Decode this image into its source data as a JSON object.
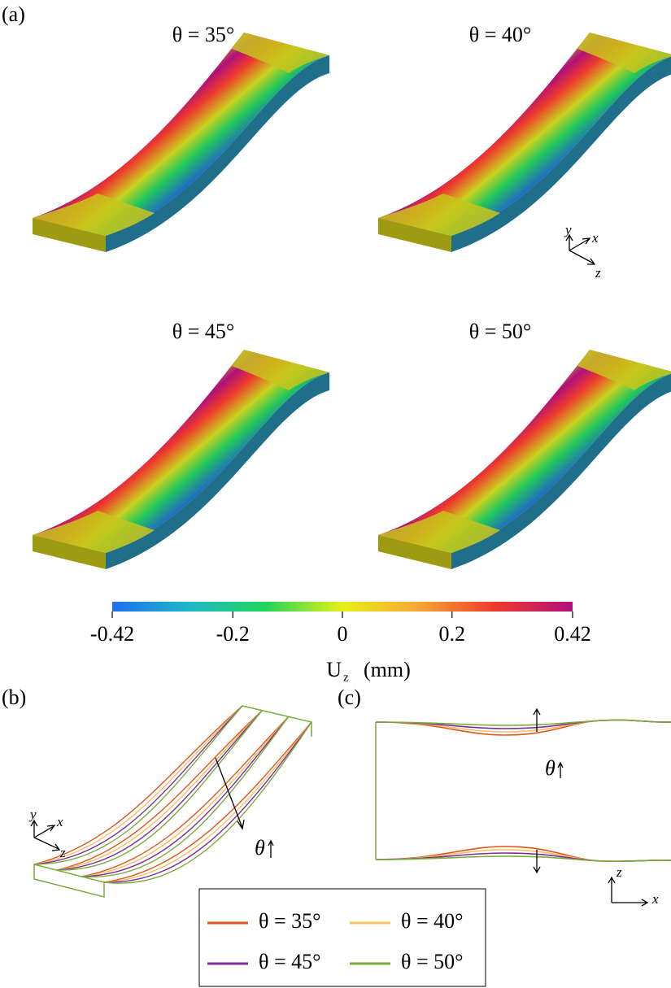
{
  "panel_labels": {
    "a": "(a)",
    "b": "(b)",
    "c": "(c)"
  },
  "panel_a": {
    "titles": [
      "θ = 35°",
      "θ = 40°",
      "θ = 45°",
      "θ = 50°"
    ],
    "axes": {
      "y": "y",
      "x": "x",
      "z": "z"
    }
  },
  "colorbar": {
    "lim": [
      -0.42,
      0.42
    ],
    "ticks": [
      -0.42,
      -0.2,
      0,
      0.2,
      0.42
    ],
    "symbol": "U",
    "subscript": "z",
    "unit": "(mm)",
    "colors": [
      "#1f6ff0",
      "#1fb8c8",
      "#22d45a",
      "#e8f018",
      "#f7a534",
      "#ee3a2c",
      "#b0107a"
    ]
  },
  "panel_b": {
    "axes": {
      "y": "y",
      "x": "x",
      "z": "z"
    },
    "annotation": "θ"
  },
  "panel_c": {
    "axes": {
      "z": "z",
      "x": "x"
    },
    "annotation": "θ"
  },
  "legend": [
    {
      "name": "θ = 35°",
      "color": "#e0561c"
    },
    {
      "name": "θ = 40°",
      "color": "#f3c060"
    },
    {
      "name": "θ = 45°",
      "color": "#7d2e9a"
    },
    {
      "name": "θ = 50°",
      "color": "#78ad3c"
    }
  ]
}
